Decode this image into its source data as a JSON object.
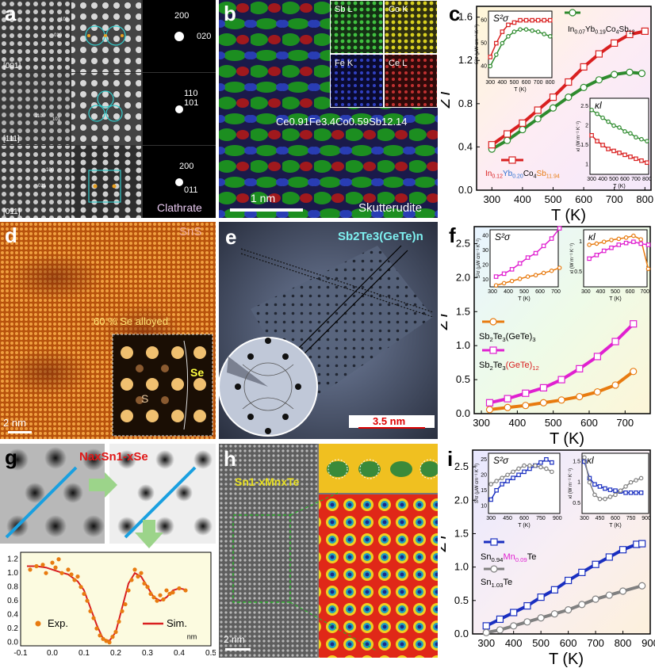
{
  "panels": {
    "a": {
      "label": "a",
      "row_labels": [
        "[001]",
        "[111]",
        "[011]"
      ],
      "lattice_marks": [
        [
          "100",
          "010"
        ],
        [
          "110",
          "101"
        ],
        [
          "100",
          "011"
        ]
      ],
      "diffraction_labels": [
        [
          "200",
          "020"
        ],
        [
          "110",
          "101"
        ],
        [
          "200",
          "011"
        ]
      ],
      "material": "Clathrate"
    },
    "b": {
      "label": "b",
      "map_labels": [
        "Sb L",
        "Co K",
        "Fe K",
        "Ce L"
      ],
      "formula": "Ce0.91Fe3.4Co0.59Sb12.14",
      "scale_bar": "1 nm",
      "material": "Skutterudite"
    },
    "d": {
      "label": "d",
      "material": "SnS",
      "note": "60 % Se alloyed",
      "atom_labels": [
        "Se",
        "S"
      ],
      "scale_bar": "2 nm"
    },
    "e": {
      "label": "e",
      "title": "Sb2Te3(GeTe)n",
      "scale_bar": "3.5 nm"
    },
    "g": {
      "label": "g",
      "formula": "NaxSn1-xSe"
    },
    "h": {
      "label": "h",
      "formula": "Sn1-xMnxTe",
      "scale_bar": "2 nm"
    }
  },
  "chart_data": [
    {
      "id": "c",
      "type": "line",
      "panel_label": "c",
      "xlabel": "T (K)",
      "ylabel": "ZT",
      "xlim": [
        250,
        820
      ],
      "ylim": [
        0,
        1.7
      ],
      "xticks": [
        300,
        400,
        500,
        600,
        700,
        800
      ],
      "yticks": [
        0.0,
        0.4,
        0.8,
        1.2,
        1.6
      ],
      "series": [
        {
          "name": "In0.07Yb0.19Co4Sb12",
          "color": "#2e8b2e",
          "marker": "circle",
          "x": [
            300,
            350,
            400,
            450,
            500,
            550,
            600,
            650,
            700,
            750,
            790
          ],
          "y": [
            0.38,
            0.46,
            0.56,
            0.66,
            0.76,
            0.86,
            0.95,
            1.02,
            1.07,
            1.09,
            1.08
          ]
        },
        {
          "name": "In0.12Yb0.20Co4Sb11.94",
          "color": "#d92020",
          "marker": "square",
          "x": [
            300,
            350,
            400,
            450,
            500,
            550,
            600,
            650,
            700,
            750,
            800
          ],
          "y": [
            0.42,
            0.52,
            0.62,
            0.74,
            0.86,
            1.0,
            1.14,
            1.26,
            1.36,
            1.44,
            1.47
          ]
        }
      ],
      "legend_parts": {
        "top": [
          "In",
          "0.07",
          "Yb",
          "0.19",
          "Co",
          "4",
          "Sb",
          "12"
        ],
        "bottom": [
          "In",
          "0.12",
          "Yb",
          "0.20",
          "Co",
          "4",
          "Sb",
          "11.94"
        ]
      },
      "insets": [
        {
          "title": "S²σ",
          "xlabel": "T (K)",
          "ylabel": "S²σ (μW cm⁻¹ K⁻²)",
          "xticks": [
            300,
            400,
            500,
            600,
            700,
            800
          ],
          "yticks": [
            40,
            50,
            60
          ],
          "series": [
            {
              "name": "In0.07Yb0.19Co4Sb12",
              "x": [
                300,
                350,
                400,
                450,
                500,
                550,
                600,
                650,
                700,
                750,
                800
              ],
              "y": [
                40,
                45,
                50,
                53,
                55,
                56,
                56,
                55.5,
                55,
                54,
                53
              ]
            },
            {
              "name": "In0.12Yb0.20Co4Sb11.94",
              "x": [
                300,
                350,
                400,
                450,
                500,
                550,
                600,
                650,
                700,
                750,
                800
              ],
              "y": [
                44,
                50,
                55,
                58,
                59,
                60,
                60,
                60,
                60,
                60,
                60
              ]
            }
          ]
        },
        {
          "title": "κl",
          "xlabel": "T (K)",
          "ylabel": "κl (W m⁻¹ K⁻¹)",
          "xticks": [
            300,
            400,
            500,
            600,
            700,
            800
          ],
          "yticks": [
            1.0,
            1.5,
            2.0,
            2.5
          ],
          "series": [
            {
              "name": "In0.07Yb0.19Co4Sb12",
              "x": [
                300,
                350,
                400,
                450,
                500,
                550,
                600,
                650,
                700,
                750,
                800
              ],
              "y": [
                2.4,
                2.3,
                2.2,
                2.1,
                2.0,
                1.95,
                1.85,
                1.8,
                1.7,
                1.65,
                1.6
              ]
            },
            {
              "name": "In0.12Yb0.20Co4Sb11.94",
              "x": [
                300,
                350,
                400,
                450,
                500,
                550,
                600,
                650,
                700,
                750,
                800
              ],
              "y": [
                1.75,
                1.6,
                1.5,
                1.4,
                1.35,
                1.3,
                1.25,
                1.2,
                1.15,
                1.1,
                1.05
              ]
            }
          ]
        }
      ]
    },
    {
      "id": "f",
      "type": "line",
      "panel_label": "f",
      "xlabel": "T (K)",
      "ylabel": "ZT",
      "xlim": [
        280,
        770
      ],
      "ylim": [
        0,
        2.75
      ],
      "xticks": [
        300,
        400,
        500,
        600,
        700
      ],
      "yticks": [
        0.0,
        0.5,
        1.0,
        1.5,
        2.0,
        2.5
      ],
      "series": [
        {
          "name": "Sb2Te3(GeTe)3",
          "color": "#e87b10",
          "marker": "circle",
          "x": [
            323,
            373,
            423,
            473,
            523,
            573,
            623,
            673,
            723
          ],
          "y": [
            0.06,
            0.09,
            0.12,
            0.16,
            0.2,
            0.25,
            0.32,
            0.42,
            0.62
          ]
        },
        {
          "name": "Sb2Te3(GeTe)12",
          "color": "#e020d0",
          "marker": "square",
          "x": [
            323,
            373,
            423,
            473,
            523,
            573,
            623,
            673,
            723
          ],
          "y": [
            0.16,
            0.22,
            0.3,
            0.38,
            0.5,
            0.66,
            0.84,
            1.06,
            1.32
          ]
        }
      ],
      "legend_parts": {
        "first": [
          "Sb",
          "2",
          "Te",
          "3",
          "(GeTe)",
          "3"
        ],
        "second": [
          "Sb",
          "2",
          "Te",
          "3",
          "(GeTe)",
          "12"
        ]
      },
      "insets": [
        {
          "title": "S²σ",
          "xlabel": "T (K)",
          "ylabel": "S²σ (μW cm⁻¹ K⁻²)",
          "xticks": [
            300,
            400,
            500,
            600,
            700
          ],
          "yticks": [
            10,
            20,
            30,
            40
          ],
          "series": [
            {
              "name": "Sb2Te3(GeTe)3",
              "x": [
                323,
                373,
                423,
                473,
                523,
                573,
                623,
                673,
                723
              ],
              "y": [
                6,
                7.5,
                9,
                10.5,
                12,
                13,
                14.5,
                16,
                18
              ]
            },
            {
              "name": "Sb2Te3(GeTe)12",
              "x": [
                323,
                373,
                423,
                473,
                523,
                573,
                623,
                673,
                723
              ],
              "y": [
                12,
                14,
                17,
                21,
                25,
                28,
                33,
                38,
                45
              ]
            }
          ]
        },
        {
          "title": "κl",
          "xlabel": "T (K)",
          "ylabel": "κl (W m⁻¹ K⁻¹)",
          "xticks": [
            300,
            400,
            500,
            600,
            700
          ],
          "yticks": [
            0.5,
            1.0
          ],
          "series": [
            {
              "name": "Sb2Te3(GeTe)3",
              "x": [
                323,
                373,
                423,
                473,
                523,
                573,
                623,
                673,
                723
              ],
              "y": [
                0.95,
                0.97,
                1.0,
                1.03,
                1.05,
                1.07,
                1.1,
                1.04,
                0.55
              ]
            },
            {
              "name": "Sb2Te3(GeTe)12",
              "x": [
                323,
                373,
                423,
                473,
                523,
                573,
                623,
                673,
                723
              ],
              "y": [
                0.72,
                0.78,
                0.85,
                0.9,
                0.95,
                0.98,
                1.0,
                0.97,
                0.95
              ]
            }
          ]
        }
      ]
    },
    {
      "id": "g",
      "type": "scatter",
      "panel_label": "",
      "xlabel": "nm",
      "ylabel": "",
      "xlim": [
        -0.1,
        0.5
      ],
      "ylim": [
        -0.05,
        1.3
      ],
      "xticks": [
        -0.1,
        0.0,
        0.1,
        0.2,
        0.3,
        0.4,
        0.5
      ],
      "yticks": [
        0.0,
        0.2,
        0.4,
        0.6,
        0.8,
        1.0,
        1.2
      ],
      "series": [
        {
          "name": "Exp.",
          "color": "#e87b10",
          "marker": "dot",
          "x": [
            -0.07,
            -0.05,
            -0.03,
            -0.02,
            0.0,
            0.01,
            0.02,
            0.03,
            0.05,
            0.06,
            0.07,
            0.08,
            0.09,
            0.1,
            0.11,
            0.12,
            0.13,
            0.14,
            0.15,
            0.16,
            0.17,
            0.18,
            0.19,
            0.2,
            0.21,
            0.22,
            0.23,
            0.24,
            0.25,
            0.26,
            0.27,
            0.28,
            0.29,
            0.3,
            0.31,
            0.32,
            0.33,
            0.34,
            0.35,
            0.36,
            0.37,
            0.38,
            0.4,
            0.42
          ],
          "y": [
            1.05,
            1.1,
            1.12,
            1.0,
            1.15,
            1.08,
            1.2,
            1.0,
            1.05,
            0.98,
            0.9,
            0.95,
            0.8,
            0.7,
            0.6,
            0.45,
            0.35,
            0.2,
            0.1,
            0.05,
            0.02,
            0.0,
            0.08,
            0.15,
            0.3,
            0.45,
            0.55,
            0.75,
            0.9,
            1.05,
            0.95,
            1.0,
            0.85,
            0.8,
            0.7,
            0.65,
            0.6,
            0.68,
            0.62,
            0.75,
            0.7,
            0.72,
            0.78,
            0.75
          ]
        },
        {
          "name": "Sim.",
          "color": "#d92020",
          "marker": "line",
          "x": [
            -0.08,
            -0.05,
            -0.02,
            0.0,
            0.02,
            0.05,
            0.08,
            0.1,
            0.12,
            0.14,
            0.16,
            0.18,
            0.2,
            0.22,
            0.24,
            0.26,
            0.28,
            0.3,
            0.32,
            0.34,
            0.36,
            0.38,
            0.4,
            0.42
          ],
          "y": [
            1.1,
            1.1,
            1.08,
            1.05,
            1.02,
            0.98,
            0.88,
            0.75,
            0.5,
            0.25,
            0.05,
            0.02,
            0.15,
            0.5,
            0.85,
            1.0,
            0.95,
            0.8,
            0.65,
            0.6,
            0.65,
            0.75,
            0.78,
            0.76
          ]
        }
      ]
    },
    {
      "id": "i",
      "type": "line",
      "panel_label": "i",
      "xlabel": "T (K)",
      "ylabel": "ZT",
      "xlim": [
        250,
        900
      ],
      "ylim": [
        0,
        2.75
      ],
      "xticks": [
        300,
        400,
        500,
        600,
        700,
        800,
        900
      ],
      "yticks": [
        0.0,
        0.5,
        1.0,
        1.5,
        2.0,
        2.5
      ],
      "series": [
        {
          "name": "Sn0.94Mn0.09Te",
          "color": "#1a2fc0",
          "marker": "square",
          "x": [
            300,
            350,
            400,
            450,
            500,
            550,
            600,
            650,
            700,
            750,
            800,
            850,
            870
          ],
          "y": [
            0.12,
            0.22,
            0.32,
            0.42,
            0.55,
            0.66,
            0.8,
            0.92,
            1.04,
            1.15,
            1.26,
            1.34,
            1.35
          ]
        },
        {
          "name": "Sn1.03Te",
          "color": "#808080",
          "marker": "circle",
          "x": [
            300,
            350,
            400,
            450,
            500,
            550,
            600,
            650,
            700,
            750,
            800,
            870
          ],
          "y": [
            0.02,
            0.06,
            0.12,
            0.18,
            0.24,
            0.3,
            0.36,
            0.44,
            0.52,
            0.58,
            0.64,
            0.72
          ]
        }
      ],
      "legend_parts": {
        "first": [
          "Sn",
          "0.94",
          "Mn",
          "0.09",
          "Te"
        ],
        "second": [
          "Sn",
          "1.03",
          "Te"
        ]
      },
      "insets": [
        {
          "title": "S²σ",
          "xlabel": "T (K)",
          "ylabel": "S²σ (μW cm⁻¹ K⁻²)",
          "xticks": [
            300,
            450,
            600,
            750,
            900
          ],
          "yticks": [
            10,
            15,
            20,
            25
          ],
          "series": [
            {
              "name": "Sn0.94Mn0.09Te",
              "x": [
                300,
                350,
                400,
                450,
                500,
                550,
                600,
                650,
                700,
                750,
                800,
                850
              ],
              "y": [
                12,
                15,
                17,
                18,
                19,
                20,
                21,
                22,
                23,
                24,
                25,
                24
              ]
            },
            {
              "name": "Sn1.03Te",
              "x": [
                300,
                350,
                400,
                450,
                500,
                550,
                600,
                650,
                700,
                750,
                800,
                850
              ],
              "y": [
                17,
                18,
                19,
                20,
                21,
                22,
                23,
                23,
                23,
                22.5,
                22,
                21
              ]
            }
          ]
        },
        {
          "title": "κl",
          "xlabel": "T (K)",
          "ylabel": "κl (W m⁻¹ K⁻¹)",
          "xticks": [
            300,
            450,
            600,
            750,
            900
          ],
          "yticks": [
            0.5,
            1.0,
            1.5
          ],
          "series": [
            {
              "name": "Sn0.94Mn0.09Te",
              "x": [
                300,
                350,
                400,
                450,
                500,
                550,
                600,
                650,
                700,
                750,
                800,
                850
              ],
              "y": [
                1.5,
                1.1,
                0.95,
                0.9,
                0.85,
                0.82,
                0.8,
                0.78,
                0.75,
                0.75,
                0.75,
                0.75
              ]
            },
            {
              "name": "Sn1.03Te",
              "x": [
                300,
                350,
                400,
                450,
                500,
                550,
                600,
                650,
                700,
                750,
                800,
                850
              ],
              "y": [
                1.6,
                1.0,
                0.7,
                0.6,
                0.6,
                0.65,
                0.7,
                0.8,
                0.9,
                1.0,
                1.05,
                1.1
              ]
            }
          ]
        }
      ]
    }
  ]
}
